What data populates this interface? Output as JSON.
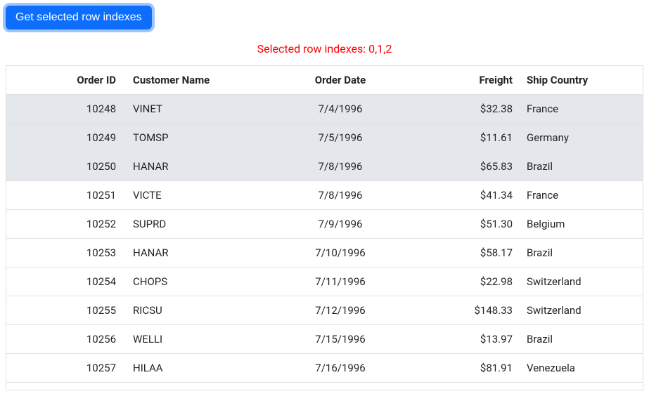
{
  "button": {
    "label": "Get selected row indexes"
  },
  "status": {
    "prefix": "Selected row indexes: ",
    "indexes": "0,1,2"
  },
  "grid": {
    "columns": [
      {
        "key": "order_id",
        "label": "Order ID",
        "class": "col-orderid"
      },
      {
        "key": "customer",
        "label": "Customer Name",
        "class": "col-customer"
      },
      {
        "key": "order_date",
        "label": "Order Date",
        "class": "col-date"
      },
      {
        "key": "freight",
        "label": "Freight",
        "class": "col-freight"
      },
      {
        "key": "ship_country",
        "label": "Ship Country",
        "class": "col-country"
      }
    ],
    "selected_indexes": [
      0,
      1,
      2
    ],
    "rows": [
      {
        "order_id": "10248",
        "customer": "VINET",
        "order_date": "7/4/1996",
        "freight": "$32.38",
        "ship_country": "France"
      },
      {
        "order_id": "10249",
        "customer": "TOMSP",
        "order_date": "7/5/1996",
        "freight": "$11.61",
        "ship_country": "Germany"
      },
      {
        "order_id": "10250",
        "customer": "HANAR",
        "order_date": "7/8/1996",
        "freight": "$65.83",
        "ship_country": "Brazil"
      },
      {
        "order_id": "10251",
        "customer": "VICTE",
        "order_date": "7/8/1996",
        "freight": "$41.34",
        "ship_country": "France"
      },
      {
        "order_id": "10252",
        "customer": "SUPRD",
        "order_date": "7/9/1996",
        "freight": "$51.30",
        "ship_country": "Belgium"
      },
      {
        "order_id": "10253",
        "customer": "HANAR",
        "order_date": "7/10/1996",
        "freight": "$58.17",
        "ship_country": "Brazil"
      },
      {
        "order_id": "10254",
        "customer": "CHOPS",
        "order_date": "7/11/1996",
        "freight": "$22.98",
        "ship_country": "Switzerland"
      },
      {
        "order_id": "10255",
        "customer": "RICSU",
        "order_date": "7/12/1996",
        "freight": "$148.33",
        "ship_country": "Switzerland"
      },
      {
        "order_id": "10256",
        "customer": "WELLI",
        "order_date": "7/15/1996",
        "freight": "$13.97",
        "ship_country": "Brazil"
      },
      {
        "order_id": "10257",
        "customer": "HILAA",
        "order_date": "7/16/1996",
        "freight": "$81.91",
        "ship_country": "Venezuela"
      }
    ]
  }
}
